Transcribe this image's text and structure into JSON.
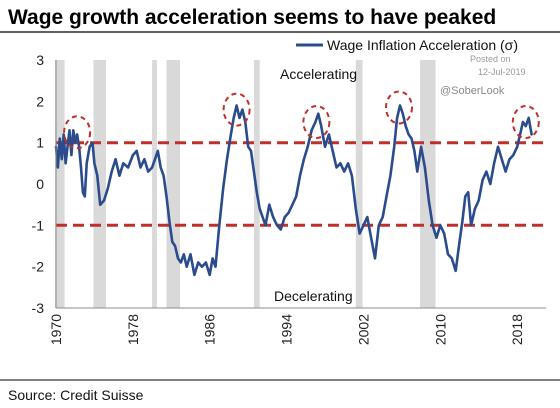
{
  "chart_data": {
    "type": "line",
    "title": "Wage growth acceleration seems to have peaked",
    "source": "Source: Credit Suisse",
    "legend_position": "top-right",
    "grid": false,
    "ylim": [
      -3,
      3
    ],
    "xlim": [
      1970,
      2021
    ],
    "y_ticks": [
      "3",
      "2",
      "1",
      "0",
      "-1",
      "-2",
      "-3"
    ],
    "x_ticks": [
      "1970",
      "1978",
      "1986",
      "1994",
      "2002",
      "2010",
      "2018"
    ],
    "reference_lines": [
      1,
      -1
    ],
    "annotations": [
      "Accelerating",
      "Decelerating"
    ],
    "watermark": {
      "posted_on": "Posted on",
      "date": "12-Jul-2019",
      "handle": "@SoberLook"
    },
    "colors": {
      "series": "#2b4c8c",
      "reference": "#c0302b",
      "circle": "#c0302b",
      "recession": "#d9d9d9"
    },
    "recessions": [
      [
        1969.9,
        1970.9
      ],
      [
        1973.9,
        1975.2
      ],
      [
        1980.0,
        1980.5
      ],
      [
        1981.5,
        1982.9
      ],
      [
        1990.6,
        1991.2
      ],
      [
        2001.2,
        2001.9
      ],
      [
        2007.9,
        2009.5
      ]
    ],
    "circled_peaks": [
      {
        "x": 1972.2,
        "y": 1.25
      },
      {
        "x": 1988.8,
        "y": 1.8
      },
      {
        "x": 1997.1,
        "y": 1.5
      },
      {
        "x": 2005.7,
        "y": 1.85
      },
      {
        "x": 2018.9,
        "y": 1.5
      }
    ],
    "series": [
      {
        "name": "Wage Inflation Acceleration (σ)",
        "x": [
          1970.0,
          1970.2,
          1970.4,
          1970.6,
          1970.8,
          1971.0,
          1971.2,
          1971.4,
          1971.6,
          1971.8,
          1972.0,
          1972.2,
          1972.4,
          1972.6,
          1972.8,
          1973.0,
          1973.2,
          1973.5,
          1973.8,
          1974.0,
          1974.3,
          1974.6,
          1975.0,
          1975.4,
          1975.8,
          1976.2,
          1976.6,
          1977.0,
          1977.5,
          1978.0,
          1978.4,
          1978.8,
          1979.2,
          1979.6,
          1980.0,
          1980.3,
          1980.6,
          1980.9,
          1981.2,
          1981.5,
          1981.8,
          1982.1,
          1982.4,
          1982.7,
          1983.0,
          1983.3,
          1983.6,
          1984.0,
          1984.4,
          1984.8,
          1985.2,
          1985.6,
          1986.0,
          1986.3,
          1986.6,
          1987.0,
          1987.4,
          1987.8,
          1988.2,
          1988.5,
          1988.8,
          1989.1,
          1989.4,
          1989.7,
          1990.0,
          1990.3,
          1990.6,
          1990.9,
          1991.2,
          1991.5,
          1991.8,
          1992.2,
          1992.6,
          1993.0,
          1993.4,
          1993.8,
          1994.2,
          1994.6,
          1995.0,
          1995.4,
          1995.8,
          1996.2,
          1996.6,
          1997.0,
          1997.3,
          1997.6,
          1998.0,
          1998.4,
          1998.8,
          1999.2,
          1999.6,
          2000.0,
          2000.4,
          2000.8,
          2001.2,
          2001.6,
          2002.0,
          2002.4,
          2002.8,
          2003.2,
          2003.6,
          2004.0,
          2004.4,
          2004.8,
          2005.2,
          2005.5,
          2005.8,
          2006.1,
          2006.4,
          2006.7,
          2007.0,
          2007.3,
          2007.6,
          2008.0,
          2008.4,
          2008.8,
          2009.2,
          2009.6,
          2010.0,
          2010.4,
          2010.8,
          2011.2,
          2011.6,
          2012.0,
          2012.3,
          2012.6,
          2012.9,
          2013.2,
          2013.6,
          2014.0,
          2014.4,
          2014.8,
          2015.2,
          2015.6,
          2016.0,
          2016.4,
          2016.8,
          2017.2,
          2017.6,
          2018.0,
          2018.3,
          2018.6,
          2018.9,
          2019.2,
          2019.5
        ],
        "values": [
          0.9,
          0.4,
          1.1,
          0.6,
          1.2,
          0.5,
          0.9,
          1.3,
          0.7,
          1.3,
          1.0,
          1.2,
          0.9,
          0.4,
          -0.2,
          -0.3,
          0.5,
          0.9,
          1.0,
          0.5,
          0.2,
          -0.5,
          -0.4,
          -0.1,
          0.3,
          0.6,
          0.2,
          0.5,
          0.4,
          0.7,
          0.8,
          0.4,
          0.6,
          0.3,
          0.4,
          0.6,
          0.8,
          0.4,
          0.2,
          -0.3,
          -0.9,
          -1.4,
          -1.5,
          -1.8,
          -1.9,
          -1.7,
          -2.0,
          -1.7,
          -2.2,
          -1.9,
          -2.0,
          -1.9,
          -2.2,
          -1.8,
          -2.0,
          -1.0,
          -0.1,
          0.6,
          1.2,
          1.6,
          1.9,
          1.6,
          1.8,
          1.5,
          0.9,
          0.8,
          0.3,
          -0.2,
          -0.6,
          -0.8,
          -1.0,
          -0.5,
          -0.8,
          -1.0,
          -1.1,
          -0.8,
          -0.7,
          -0.5,
          -0.3,
          0.2,
          0.6,
          0.9,
          1.3,
          1.5,
          1.7,
          1.4,
          0.9,
          1.2,
          0.8,
          0.4,
          0.5,
          0.3,
          0.5,
          0.2,
          -0.6,
          -1.2,
          -1.0,
          -0.8,
          -1.3,
          -1.8,
          -1.0,
          -0.8,
          -0.3,
          0.2,
          0.9,
          1.6,
          1.9,
          1.7,
          1.4,
          1.2,
          1.1,
          0.8,
          0.3,
          0.9,
          0.4,
          -0.4,
          -1.0,
          -1.3,
          -1.0,
          -1.2,
          -1.7,
          -1.8,
          -2.1,
          -1.4,
          -0.9,
          -0.3,
          -0.2,
          -1.0,
          -0.6,
          -0.4,
          0.1,
          0.3,
          0.0,
          0.5,
          0.9,
          0.6,
          0.3,
          0.6,
          0.7,
          0.9,
          1.2,
          1.5,
          1.4,
          1.6,
          1.2
        ]
      }
    ]
  }
}
